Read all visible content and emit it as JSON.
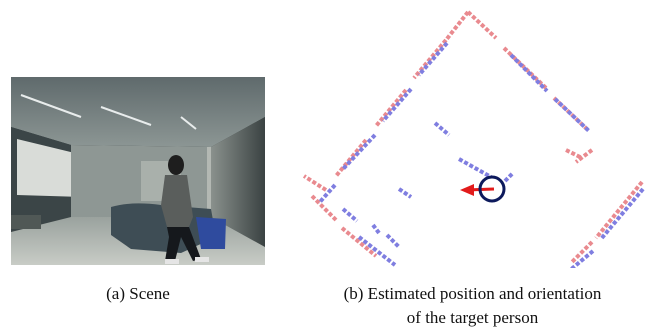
{
  "figure": {
    "subfigure_a": {
      "caption": "(a) Scene"
    },
    "subfigure_b": {
      "caption_line1": "(b) Estimated position and orientation",
      "caption_line2": "of the target person"
    }
  },
  "colors": {
    "scan_red": "#e98a8f",
    "scan_blue": "#7f7ee0",
    "person_marker": "#0d1a5c",
    "orientation_arrow": "#e21b1b"
  }
}
